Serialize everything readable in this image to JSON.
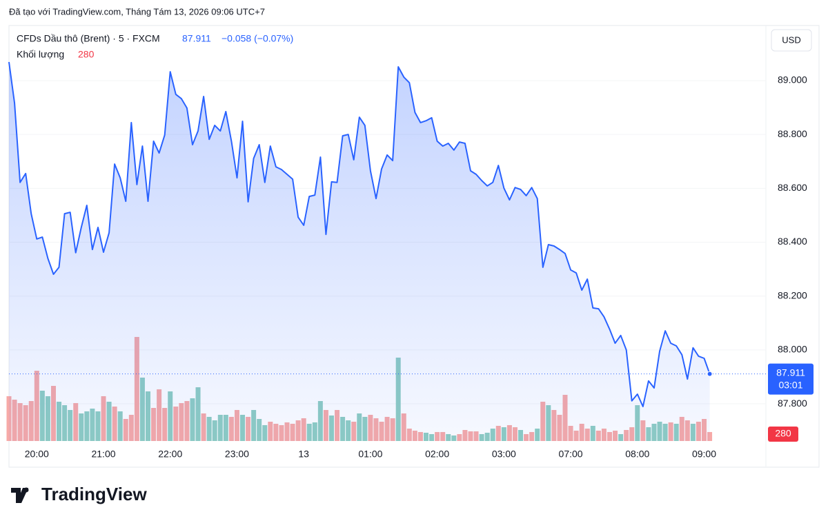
{
  "header": {
    "credit": "Đã tạo với TradingView.com, Tháng Tám 13, 2026 09:06 UTC+7"
  },
  "chart_data": {
    "type": "line",
    "title": "CFDs Dầu thô (Brent) · 5 · FXCM",
    "change": "−0.058 (−0.07%)",
    "currency": "USD",
    "countdown": "03:01",
    "brand": "TradingView",
    "categories": [
      null,
      null,
      null,
      null,
      null,
      "20:00",
      null,
      null,
      null,
      null,
      null,
      null,
      null,
      null,
      null,
      null,
      null,
      "21:00",
      null,
      null,
      null,
      null,
      null,
      null,
      null,
      null,
      null,
      null,
      null,
      "22:00",
      null,
      null,
      null,
      null,
      null,
      null,
      null,
      null,
      null,
      null,
      null,
      "23:00",
      null,
      null,
      null,
      null,
      null,
      null,
      null,
      null,
      null,
      null,
      null,
      "13",
      null,
      null,
      null,
      null,
      null,
      null,
      null,
      null,
      null,
      null,
      null,
      "01:00",
      null,
      null,
      null,
      null,
      null,
      null,
      null,
      null,
      null,
      null,
      null,
      "02:00",
      null,
      null,
      null,
      null,
      null,
      null,
      null,
      null,
      null,
      null,
      null,
      "03:00",
      null,
      null,
      null,
      null,
      null,
      null,
      null,
      null,
      null,
      null,
      null,
      "07:00",
      null,
      null,
      null,
      null,
      null,
      null,
      null,
      null,
      null,
      null,
      null,
      "08:00",
      null,
      null,
      null,
      null,
      null,
      null,
      null,
      null,
      null,
      null,
      null,
      "09:00",
      null
    ],
    "series": [
      {
        "name": "CFDs Dầu thô (Brent)",
        "color": "#2962ff",
        "values": [
          89.069,
          88.916,
          88.622,
          88.655,
          88.506,
          88.412,
          88.419,
          88.34,
          88.281,
          88.307,
          88.506,
          88.511,
          88.361,
          88.455,
          88.537,
          88.373,
          88.455,
          88.363,
          88.435,
          88.69,
          88.639,
          88.552,
          88.844,
          88.614,
          88.757,
          88.552,
          88.775,
          88.731,
          88.798,
          89.033,
          88.949,
          88.933,
          88.898,
          88.762,
          88.813,
          88.941,
          88.782,
          88.834,
          88.813,
          88.885,
          88.775,
          88.639,
          88.849,
          88.55,
          88.711,
          88.762,
          88.622,
          88.757,
          88.68,
          88.67,
          88.652,
          88.634,
          88.493,
          88.463,
          88.57,
          88.575,
          88.716,
          88.429,
          88.624,
          88.622,
          88.795,
          88.8,
          88.706,
          88.864,
          88.834,
          88.665,
          88.562,
          88.672,
          88.724,
          88.703,
          89.051,
          89.013,
          88.992,
          88.882,
          88.844,
          88.851,
          88.862,
          88.775,
          88.757,
          88.767,
          88.742,
          88.772,
          88.767,
          88.665,
          88.652,
          88.629,
          88.609,
          88.622,
          88.685,
          88.601,
          88.557,
          88.603,
          88.596,
          88.573,
          88.603,
          88.562,
          88.307,
          88.391,
          88.386,
          88.373,
          88.358,
          88.297,
          88.286,
          88.222,
          88.263,
          88.156,
          88.153,
          88.123,
          88.077,
          88.025,
          88.054,
          88.0,
          87.811,
          87.836,
          87.79,
          87.885,
          87.859,
          87.995,
          88.071,
          88.025,
          88.015,
          87.982,
          87.892,
          88.008,
          87.977,
          87.969,
          87.911
        ]
      }
    ],
    "volume": {
      "name": "Khối lượng",
      "values": [
        1398,
        1290,
        1183,
        1118,
        1247,
        2193,
        1570,
        1398,
        1720,
        1226,
        1118,
        968,
        1183,
        860,
        925,
        1011,
        925,
        1398,
        1226,
        1075,
        925,
        688,
        817,
        3247,
        1978,
        1548,
        1032,
        1613,
        1032,
        1548,
        1075,
        1183,
        1247,
        1333,
        1677,
        860,
        753,
        645,
        817,
        817,
        753,
        968,
        817,
        753,
        968,
        688,
        495,
        602,
        538,
        495,
        581,
        538,
        645,
        710,
        538,
        581,
        1247,
        968,
        796,
        968,
        753,
        645,
        602,
        860,
        753,
        817,
        710,
        602,
        753,
        710,
        2602,
        860,
        387,
        323,
        280,
        258,
        215,
        280,
        280,
        215,
        172,
        215,
        344,
        301,
        301,
        215,
        258,
        387,
        473,
        430,
        495,
        430,
        344,
        215,
        280,
        387,
        1226,
        1118,
        968,
        817,
        1441,
        473,
        323,
        538,
        387,
        473,
        323,
        387,
        280,
        323,
        215,
        344,
        430,
        1118,
        645,
        430,
        538,
        602,
        538,
        581,
        538,
        753,
        645,
        538,
        602,
        688,
        280
      ],
      "colors": [
        "#f7a9a7",
        "#f7a9a7",
        "#f7a9a7",
        "#f7a9a7",
        "#f7a9a7",
        "#f7a9a7",
        "#8fcdc2",
        "#8fcdc2",
        "#f7a9a7",
        "#8fcdc2",
        "#8fcdc2",
        "#8fcdc2",
        "#f7a9a7",
        "#8fcdc2",
        "#8fcdc2",
        "#8fcdc2",
        "#8fcdc2",
        "#f7a9a7",
        "#8fcdc2",
        "#f7a9a7",
        "#8fcdc2",
        "#f7a9a7",
        "#f7a9a7",
        "#f7a9a7",
        "#8fcdc2",
        "#8fcdc2",
        "#f7a9a7",
        "#f7a9a7",
        "#f7a9a7",
        "#8fcdc2",
        "#f7a9a7",
        "#f7a9a7",
        "#f7a9a7",
        "#8fcdc2",
        "#8fcdc2",
        "#f7a9a7",
        "#8fcdc2",
        "#8fcdc2",
        "#8fcdc2",
        "#8fcdc2",
        "#f7a9a7",
        "#f7a9a7",
        "#8fcdc2",
        "#f7a9a7",
        "#8fcdc2",
        "#8fcdc2",
        "#8fcdc2",
        "#f7a9a7",
        "#f7a9a7",
        "#f7a9a7",
        "#f7a9a7",
        "#f7a9a7",
        "#f7a9a7",
        "#f7a9a7",
        "#8fcdc2",
        "#8fcdc2",
        "#8fcdc2",
        "#f7a9a7",
        "#8fcdc2",
        "#f7a9a7",
        "#8fcdc2",
        "#8fcdc2",
        "#f7a9a7",
        "#8fcdc2",
        "#8fcdc2",
        "#f7a9a7",
        "#f7a9a7",
        "#f7a9a7",
        "#f7a9a7",
        "#f7a9a7",
        "#8fcdc2",
        "#f7a9a7",
        "#f7a9a7",
        "#f7a9a7",
        "#f7a9a7",
        "#8fcdc2",
        "#8fcdc2",
        "#f7a9a7",
        "#f7a9a7",
        "#8fcdc2",
        "#8fcdc2",
        "#f7a9a7",
        "#f7a9a7",
        "#f7a9a7",
        "#f7a9a7",
        "#8fcdc2",
        "#8fcdc2",
        "#8fcdc2",
        "#f7a9a7",
        "#8fcdc2",
        "#f7a9a7",
        "#f7a9a7",
        "#8fcdc2",
        "#f7a9a7",
        "#f7a9a7",
        "#8fcdc2",
        "#f7a9a7",
        "#8fcdc2",
        "#f7a9a7",
        "#f7a9a7",
        "#f7a9a7",
        "#f7a9a7",
        "#f7a9a7",
        "#f7a9a7",
        "#f7a9a7",
        "#8fcdc2",
        "#f7a9a7",
        "#f7a9a7",
        "#f7a9a7",
        "#f7a9a7",
        "#8fcdc2",
        "#f7a9a7",
        "#f7a9a7",
        "#8fcdc2",
        "#f7a9a7",
        "#8fcdc2",
        "#8fcdc2",
        "#8fcdc2",
        "#8fcdc2",
        "#f7a9a7",
        "#8fcdc2",
        "#f7a9a7",
        "#f7a9a7",
        "#8fcdc2",
        "#f7a9a7",
        "#f7a9a7",
        "#f7a9a7"
      ]
    },
    "ylim": [
      87.662,
      89.202
    ],
    "yticks": [
      {
        "value": 87.8,
        "label": "87.800"
      },
      {
        "value": 88,
        "label": "88.000"
      },
      {
        "value": 88.2,
        "label": "88.200"
      },
      {
        "value": 88.4,
        "label": "88.400"
      },
      {
        "value": 88.6,
        "label": "88.600"
      },
      {
        "value": 88.8,
        "label": "88.800"
      },
      {
        "value": 89,
        "label": "89.000"
      }
    ],
    "grid": true
  }
}
